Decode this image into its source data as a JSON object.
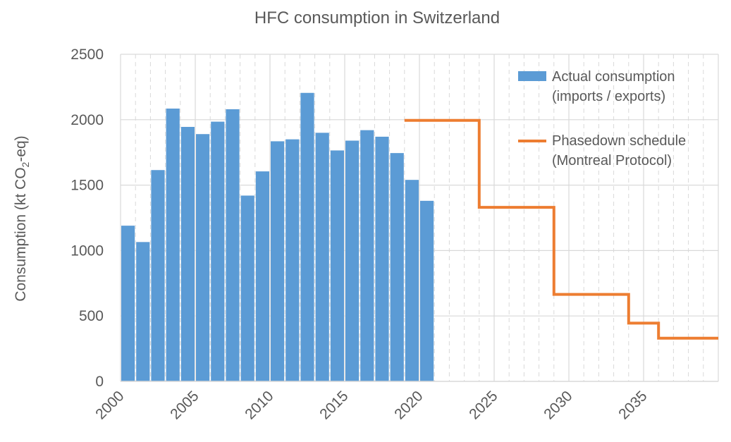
{
  "chart_data": {
    "type": "bar",
    "title": "HFC consumption in Switzerland",
    "ylabel": {
      "pre": "Consumption (kt CO",
      "sub": "2",
      "post": "-eq)"
    },
    "ylim": [
      0,
      2500
    ],
    "xlim": [
      2000,
      2040
    ],
    "y_ticks": [
      0,
      500,
      1000,
      1500,
      2000,
      2500
    ],
    "x_ticks": [
      2000,
      2005,
      2010,
      2015,
      2020,
      2025,
      2030,
      2035
    ],
    "x_tick_labels": [
      "2000",
      "2005",
      "2010",
      "2015",
      "2020",
      "2025",
      "2030",
      "2035"
    ],
    "y_tick_labels": [
      "0",
      "500",
      "1000",
      "1500",
      "2000",
      "2500"
    ],
    "grid": true,
    "legend_position": "top-right",
    "series": [
      {
        "name": "Actual consumption",
        "name_line2": "(imports / exports)",
        "type": "bar",
        "color": "#5b9bd5",
        "x": [
          2000,
          2001,
          2002,
          2003,
          2004,
          2005,
          2006,
          2007,
          2008,
          2009,
          2010,
          2011,
          2012,
          2013,
          2014,
          2015,
          2016,
          2017,
          2018,
          2019,
          2020
        ],
        "values": [
          1190,
          1065,
          1615,
          2085,
          1945,
          1890,
          1985,
          2080,
          1420,
          1605,
          1835,
          1850,
          2205,
          1900,
          1765,
          1840,
          1920,
          1870,
          1745,
          1540,
          1380
        ]
      },
      {
        "name": "Phasedown schedule",
        "name_line2": "(Montreal Protocol)",
        "type": "step",
        "color": "#ed7d31",
        "steps": [
          {
            "from": 2019,
            "to": 2024,
            "value": 1995
          },
          {
            "from": 2024,
            "to": 2029,
            "value": 1330
          },
          {
            "from": 2029,
            "to": 2034,
            "value": 665
          },
          {
            "from": 2034,
            "to": 2036,
            "value": 445
          },
          {
            "from": 2036,
            "to": 2040,
            "value": 330
          }
        ]
      }
    ]
  }
}
